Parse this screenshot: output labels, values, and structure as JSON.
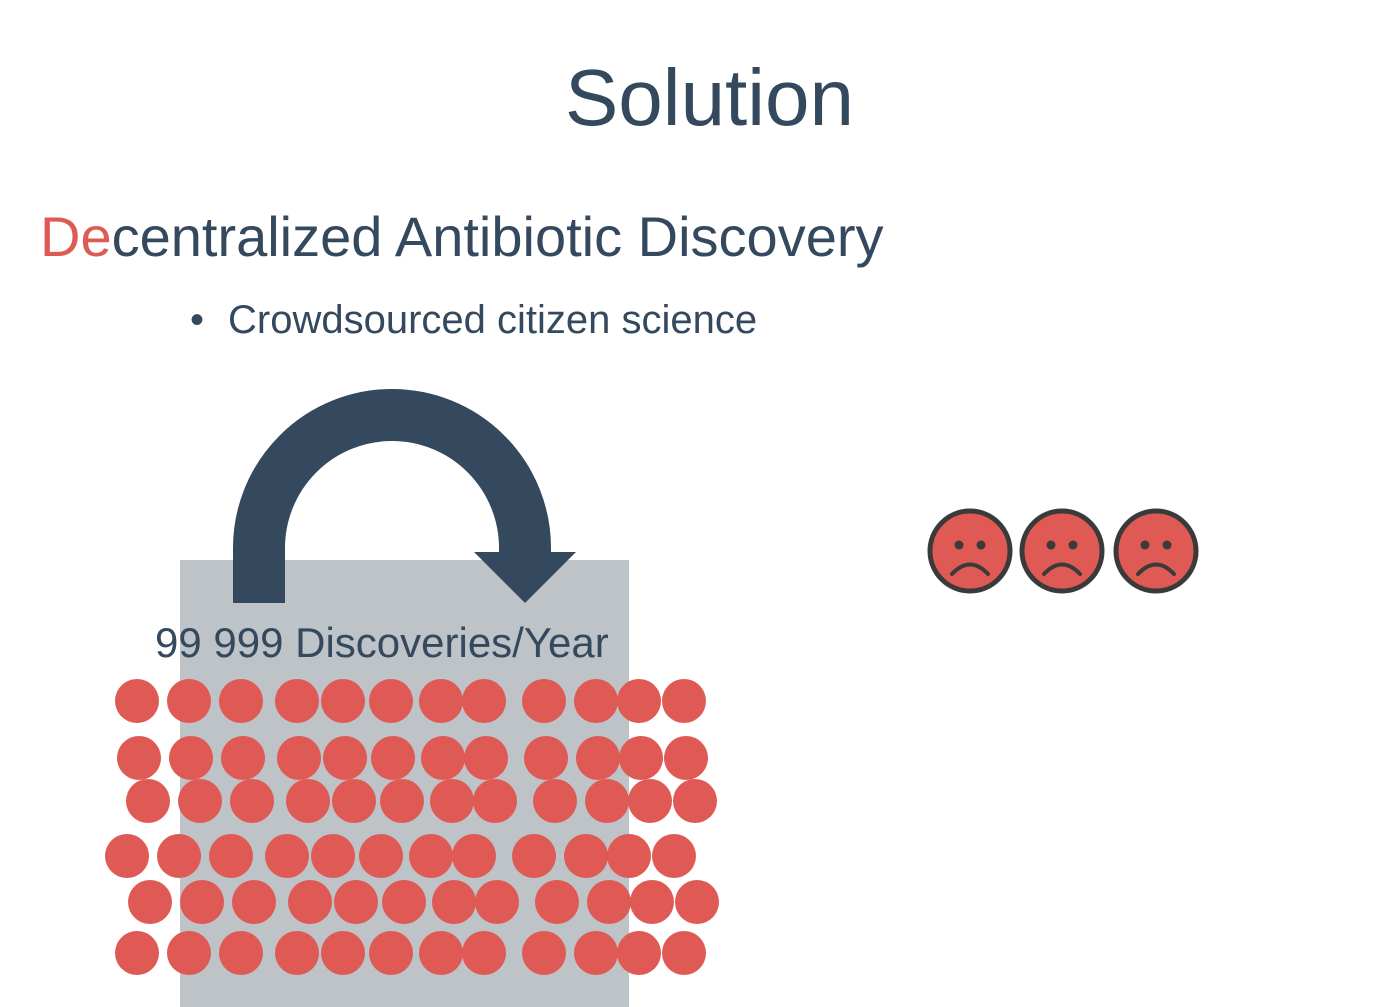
{
  "slide": {
    "title": "Solution",
    "heading_accent": "De",
    "heading_rest": "centralized Antibiotic Discovery",
    "bullet_text": "Crowdsourced citizen science",
    "bullet_symbol": "•",
    "discoveries_label": "99 999 Discoveries/Year"
  },
  "icons": {
    "arrow": "curved-arrow-icon",
    "sad_face": "sad-face-icon"
  },
  "colors": {
    "text": "#34495e",
    "accent": "#e05a55",
    "box": "#bdc3c7",
    "face_outline": "#3a3a3a"
  }
}
